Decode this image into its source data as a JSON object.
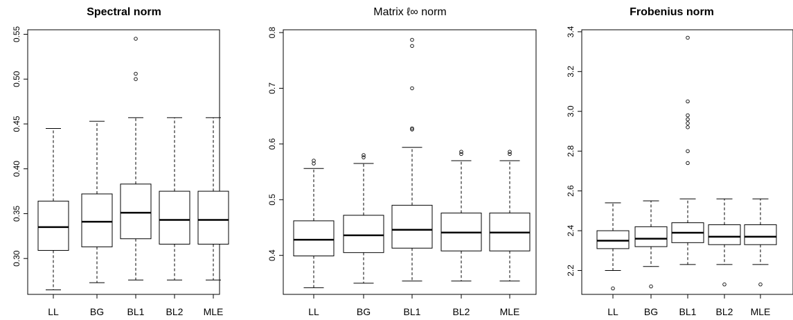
{
  "figure": {
    "panels": [
      {
        "title": "Spectral norm",
        "bold": true
      },
      {
        "title": "Matrix ℓ∞ norm",
        "bold": false
      },
      {
        "title": "Frobenius norm",
        "bold": true
      }
    ]
  },
  "chart_data": [
    {
      "type": "boxplot",
      "title": "Spectral norm",
      "xlabel": "",
      "ylabel": "",
      "categories": [
        "LL",
        "BG",
        "BL1",
        "BL2",
        "MLE"
      ],
      "ylim": [
        0.26,
        0.555
      ],
      "yticks": [
        0.3,
        0.35,
        0.4,
        0.45,
        0.5,
        0.55
      ],
      "ytick_labels": [
        "0.30",
        "0.35",
        "0.40",
        "0.45",
        "0.50",
        "0.55"
      ],
      "boxes": [
        {
          "label": "LL",
          "whisker_low": 0.265,
          "q1": 0.309,
          "median": 0.335,
          "q3": 0.364,
          "whisker_high": 0.445,
          "outliers": []
        },
        {
          "label": "BG",
          "whisker_low": 0.273,
          "q1": 0.313,
          "median": 0.341,
          "q3": 0.372,
          "whisker_high": 0.453,
          "outliers": []
        },
        {
          "label": "BL1",
          "whisker_low": 0.276,
          "q1": 0.322,
          "median": 0.351,
          "q3": 0.383,
          "whisker_high": 0.457,
          "outliers": [
            0.545,
            0.506,
            0.5
          ]
        },
        {
          "label": "BL2",
          "whisker_low": 0.276,
          "q1": 0.316,
          "median": 0.343,
          "q3": 0.375,
          "whisker_high": 0.457,
          "outliers": []
        },
        {
          "label": "MLE",
          "whisker_low": 0.276,
          "q1": 0.316,
          "median": 0.343,
          "q3": 0.375,
          "whisker_high": 0.457,
          "outliers": []
        }
      ]
    },
    {
      "type": "boxplot",
      "title": "Matrix ℓ∞ norm",
      "xlabel": "",
      "ylabel": "",
      "categories": [
        "LL",
        "BG",
        "BL1",
        "BL2",
        "MLE"
      ],
      "ylim": [
        0.33,
        0.805
      ],
      "yticks": [
        0.4,
        0.5,
        0.6,
        0.7,
        0.8
      ],
      "ytick_labels": [
        "0.4",
        "0.5",
        "0.6",
        "0.7",
        "0.8"
      ],
      "boxes": [
        {
          "label": "LL",
          "whisker_low": 0.342,
          "q1": 0.399,
          "median": 0.428,
          "q3": 0.462,
          "whisker_high": 0.556,
          "outliers": [
            0.57,
            0.565
          ]
        },
        {
          "label": "BG",
          "whisker_low": 0.35,
          "q1": 0.405,
          "median": 0.436,
          "q3": 0.472,
          "whisker_high": 0.565,
          "outliers": [
            0.58,
            0.576
          ]
        },
        {
          "label": "BL1",
          "whisker_low": 0.354,
          "q1": 0.413,
          "median": 0.446,
          "q3": 0.49,
          "whisker_high": 0.594,
          "outliers": [
            0.787,
            0.776,
            0.7,
            0.628,
            0.626
          ]
        },
        {
          "label": "BL2",
          "whisker_low": 0.354,
          "q1": 0.408,
          "median": 0.441,
          "q3": 0.476,
          "whisker_high": 0.57,
          "outliers": [
            0.586,
            0.582
          ]
        },
        {
          "label": "MLE",
          "whisker_low": 0.354,
          "q1": 0.408,
          "median": 0.441,
          "q3": 0.476,
          "whisker_high": 0.57,
          "outliers": [
            0.586,
            0.582
          ]
        }
      ]
    },
    {
      "type": "boxplot",
      "title": "Frobenius norm",
      "xlabel": "",
      "ylabel": "",
      "categories": [
        "LL",
        "BG",
        "BL1",
        "BL2",
        "MLE"
      ],
      "ylim": [
        2.08,
        3.41
      ],
      "yticks": [
        2.2,
        2.4,
        2.6,
        2.8,
        3.0,
        3.2,
        3.4
      ],
      "ytick_labels": [
        "2.2",
        "2.4",
        "2.6",
        "2.8",
        "3.0",
        "3.2",
        "3.4"
      ],
      "boxes": [
        {
          "label": "LL",
          "whisker_low": 2.2,
          "q1": 2.31,
          "median": 2.35,
          "q3": 2.4,
          "whisker_high": 2.54,
          "outliers": [
            2.11
          ]
        },
        {
          "label": "BG",
          "whisker_low": 2.22,
          "q1": 2.32,
          "median": 2.36,
          "q3": 2.42,
          "whisker_high": 2.55,
          "outliers": [
            2.12
          ]
        },
        {
          "label": "BL1",
          "whisker_low": 2.23,
          "q1": 2.34,
          "median": 2.39,
          "q3": 2.44,
          "whisker_high": 2.56,
          "outliers": [
            3.37,
            3.05,
            2.98,
            2.96,
            2.94,
            2.92,
            2.8,
            2.74
          ]
        },
        {
          "label": "BL2",
          "whisker_low": 2.23,
          "q1": 2.33,
          "median": 2.37,
          "q3": 2.43,
          "whisker_high": 2.56,
          "outliers": [
            2.13
          ]
        },
        {
          "label": "MLE",
          "whisker_low": 2.23,
          "q1": 2.33,
          "median": 2.37,
          "q3": 2.43,
          "whisker_high": 2.56,
          "outliers": [
            2.13
          ]
        }
      ]
    }
  ]
}
